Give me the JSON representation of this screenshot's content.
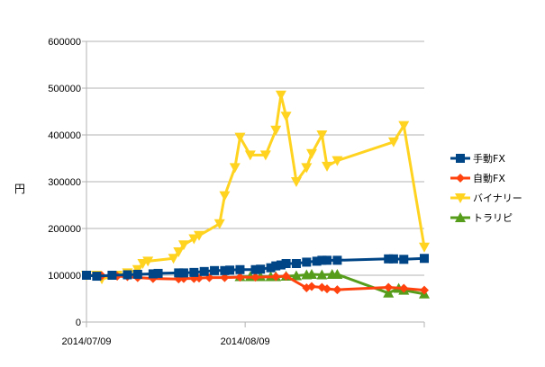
{
  "chart_data": {
    "type": "line",
    "title": "",
    "xlabel": "",
    "ylabel": "円",
    "ylim": [
      0,
      600000
    ],
    "xlim": [
      "2014-07-09",
      "2014-09-13"
    ],
    "y_ticks": [
      "0",
      "100000",
      "200000",
      "300000",
      "400000",
      "500000",
      "600000"
    ],
    "x_ticks": [
      "2014/07/09",
      "2014/08/09"
    ],
    "grid": "horizontal",
    "legend_position": "right",
    "series": [
      {
        "name": "手動FX",
        "color": "#004586",
        "marker": "square",
        "points": [
          [
            "2014-07-09",
            100000
          ],
          [
            "2014-07-11",
            98000
          ],
          [
            "2014-07-14",
            100000
          ],
          [
            "2014-07-17",
            101000
          ],
          [
            "2014-07-19",
            102000
          ],
          [
            "2014-07-22",
            103000
          ],
          [
            "2014-07-23",
            104000
          ],
          [
            "2014-07-27",
            105000
          ],
          [
            "2014-07-28",
            105000
          ],
          [
            "2014-07-30",
            106000
          ],
          [
            "2014-08-01",
            108000
          ],
          [
            "2014-08-03",
            110000
          ],
          [
            "2014-08-05",
            110000
          ],
          [
            "2014-08-06",
            111000
          ],
          [
            "2014-08-08",
            112000
          ],
          [
            "2014-08-11",
            112000
          ],
          [
            "2014-08-12",
            113000
          ],
          [
            "2014-08-14",
            116000
          ],
          [
            "2014-08-15",
            120000
          ],
          [
            "2014-08-16",
            122000
          ],
          [
            "2014-08-17",
            125000
          ],
          [
            "2014-08-19",
            125000
          ],
          [
            "2014-08-21",
            128000
          ],
          [
            "2014-08-23",
            130000
          ],
          [
            "2014-08-24",
            132000
          ],
          [
            "2014-08-25",
            132000
          ],
          [
            "2014-08-27",
            132000
          ],
          [
            "2014-09-06",
            135000
          ],
          [
            "2014-09-07",
            135000
          ],
          [
            "2014-09-09",
            134000
          ],
          [
            "2014-09-13",
            136000
          ]
        ]
      },
      {
        "name": "自動FX",
        "color": "#ff420e",
        "marker": "diamond",
        "points": [
          [
            "2014-07-09",
            100000
          ],
          [
            "2014-07-12",
            99000
          ],
          [
            "2014-07-15",
            98000
          ],
          [
            "2014-07-17",
            97000
          ],
          [
            "2014-07-19",
            95000
          ],
          [
            "2014-07-22",
            93000
          ],
          [
            "2014-07-27",
            92000
          ],
          [
            "2014-07-28",
            93000
          ],
          [
            "2014-07-30",
            93000
          ],
          [
            "2014-07-31",
            94000
          ],
          [
            "2014-08-02",
            95000
          ],
          [
            "2014-08-05",
            95000
          ],
          [
            "2014-08-08",
            96000
          ],
          [
            "2014-08-11",
            96000
          ],
          [
            "2014-08-15",
            97000
          ],
          [
            "2014-08-17",
            98000
          ],
          [
            "2014-08-21",
            73000
          ],
          [
            "2014-08-22",
            76000
          ],
          [
            "2014-08-24",
            74000
          ],
          [
            "2014-08-25",
            71000
          ],
          [
            "2014-08-27",
            69000
          ],
          [
            "2014-09-06",
            74000
          ],
          [
            "2014-09-09",
            72000
          ],
          [
            "2014-09-13",
            68000
          ]
        ]
      },
      {
        "name": "バイナリー",
        "color": "#ffd320",
        "marker": "triangle-down",
        "points": [
          [
            "2014-07-09",
            100000
          ],
          [
            "2014-07-11",
            100000
          ],
          [
            "2014-07-12",
            92000
          ],
          [
            "2014-07-15",
            100000
          ],
          [
            "2014-07-17",
            105000
          ],
          [
            "2014-07-19",
            112000
          ],
          [
            "2014-07-20",
            125000
          ],
          [
            "2014-07-21",
            130000
          ],
          [
            "2014-07-26",
            136000
          ],
          [
            "2014-07-27",
            150000
          ],
          [
            "2014-07-28",
            165000
          ],
          [
            "2014-07-30",
            178000
          ],
          [
            "2014-07-31",
            185000
          ],
          [
            "2014-08-04",
            210000
          ],
          [
            "2014-08-05",
            270000
          ],
          [
            "2014-08-07",
            330000
          ],
          [
            "2014-08-08",
            395000
          ],
          [
            "2014-08-10",
            357000
          ],
          [
            "2014-08-13",
            357000
          ],
          [
            "2014-08-15",
            410000
          ],
          [
            "2014-08-16",
            485000
          ],
          [
            "2014-08-17",
            440000
          ],
          [
            "2014-08-19",
            300000
          ],
          [
            "2014-08-21",
            330000
          ],
          [
            "2014-08-22",
            360000
          ],
          [
            "2014-08-24",
            400000
          ],
          [
            "2014-08-25",
            333000
          ],
          [
            "2014-08-27",
            345000
          ],
          [
            "2014-09-07",
            385000
          ],
          [
            "2014-09-09",
            420000
          ],
          [
            "2014-09-13",
            160000
          ]
        ]
      },
      {
        "name": "トラリピ",
        "color": "#579d1c",
        "marker": "triangle-up",
        "points": [
          [
            "2014-08-08",
            97000
          ],
          [
            "2014-08-10",
            97000
          ],
          [
            "2014-08-12",
            97000
          ],
          [
            "2014-08-14",
            97000
          ],
          [
            "2014-08-15",
            97000
          ],
          [
            "2014-08-17",
            98000
          ],
          [
            "2014-08-19",
            99000
          ],
          [
            "2014-08-21",
            101000
          ],
          [
            "2014-08-22",
            102000
          ],
          [
            "2014-08-24",
            101000
          ],
          [
            "2014-08-26",
            102000
          ],
          [
            "2014-08-27",
            102000
          ],
          [
            "2014-09-06",
            62000
          ],
          [
            "2014-09-08",
            72000
          ],
          [
            "2014-09-09",
            68000
          ],
          [
            "2014-09-13",
            60000
          ]
        ]
      }
    ]
  }
}
